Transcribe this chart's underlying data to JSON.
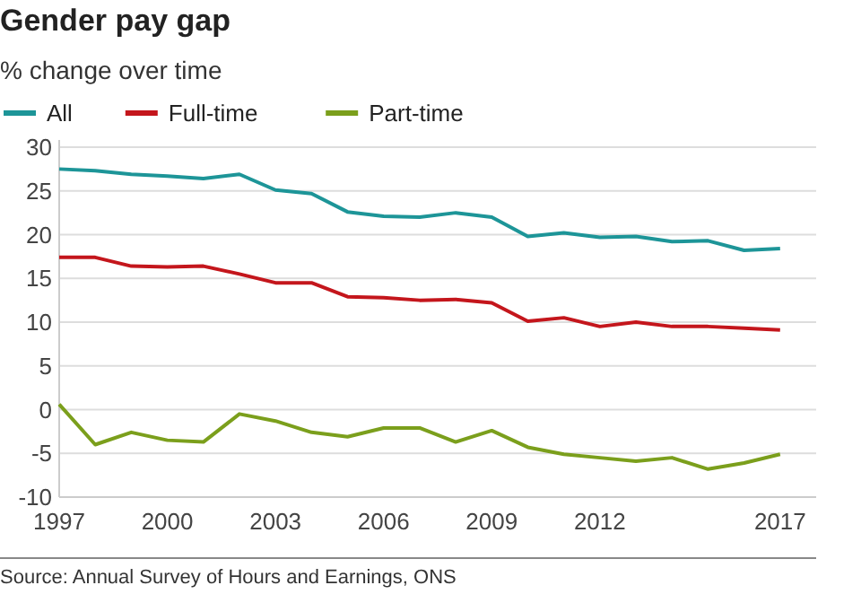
{
  "chart_data": {
    "type": "line",
    "title": "Gender pay gap",
    "subtitle": "% change over time",
    "x": [
      1997,
      1998,
      1999,
      2000,
      2001,
      2002,
      2003,
      2004,
      2005,
      2006,
      2007,
      2008,
      2009,
      2010,
      2011,
      2012,
      2013,
      2014,
      2015,
      2016,
      2017
    ],
    "series": [
      {
        "name": "All",
        "color": "#1d9598",
        "values": [
          27.5,
          27.3,
          26.9,
          26.7,
          26.4,
          26.9,
          25.1,
          24.7,
          22.6,
          22.1,
          22.0,
          22.5,
          22.0,
          19.8,
          20.2,
          19.7,
          19.8,
          19.2,
          19.3,
          18.2,
          18.4
        ]
      },
      {
        "name": "Full-time",
        "color": "#c4161c",
        "values": [
          17.4,
          17.4,
          16.4,
          16.3,
          16.4,
          15.5,
          14.5,
          14.5,
          12.9,
          12.8,
          12.5,
          12.6,
          12.2,
          10.1,
          10.5,
          9.5,
          10.0,
          9.5,
          9.5,
          9.3,
          9.1
        ]
      },
      {
        "name": "Part-time",
        "color": "#7b9f1c",
        "values": [
          0.6,
          -4.0,
          -2.6,
          -3.5,
          -3.7,
          -0.5,
          -1.3,
          -2.6,
          -3.1,
          -2.1,
          -2.1,
          -3.7,
          -2.4,
          -4.3,
          -5.1,
          -5.5,
          -5.9,
          -5.5,
          -6.8,
          -6.1,
          -5.1
        ]
      }
    ],
    "xlim": [
      1997,
      2018
    ],
    "xticks": [
      1997,
      2000,
      2003,
      2006,
      2009,
      2012,
      2017
    ],
    "ylim": [
      -10,
      30
    ],
    "yticks": [
      -10,
      -5,
      0,
      5,
      10,
      15,
      20,
      25,
      30
    ],
    "grid": "y",
    "legend": "top left",
    "marker": "none",
    "line_style": "solid",
    "annotations": [
      "Source: Annual Survey of Hours and Earnings, ONS"
    ]
  }
}
